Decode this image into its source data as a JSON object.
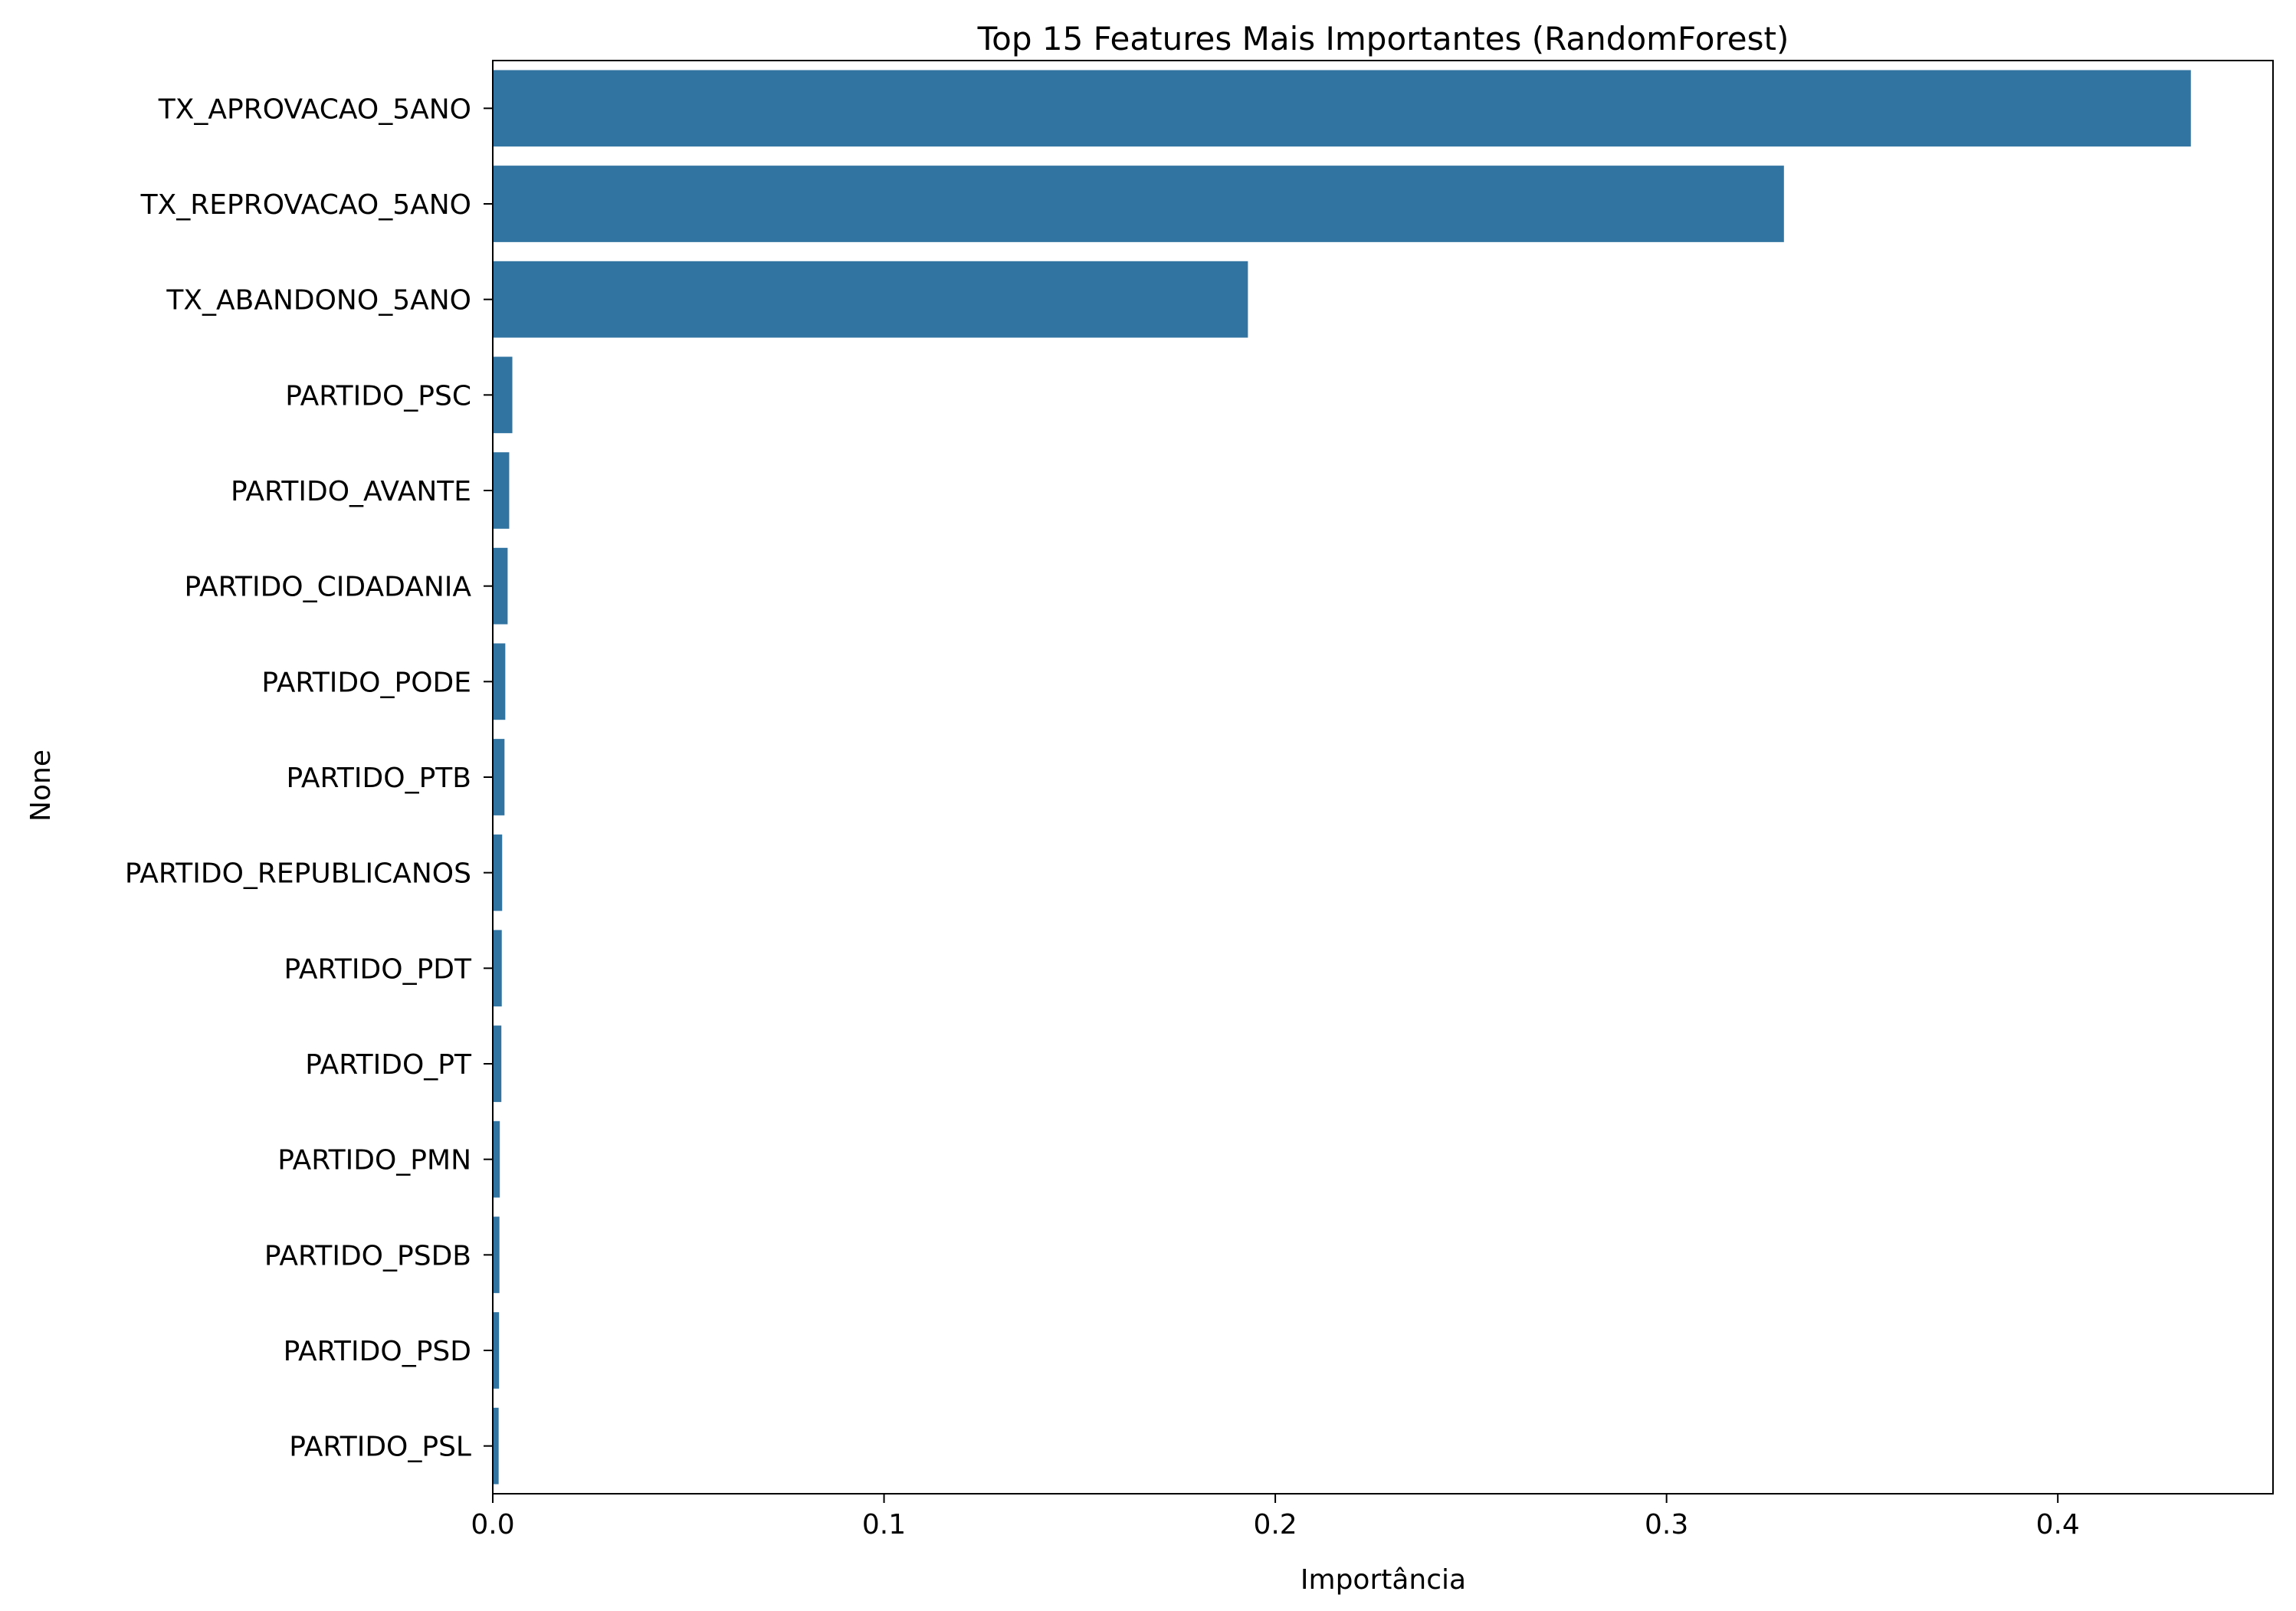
{
  "chart_data": {
    "type": "bar",
    "orientation": "horizontal",
    "title": "Top 15 Features Mais Importantes (RandomForest)",
    "xlabel": "Importância",
    "ylabel": "None",
    "xlim": [
      0,
      0.455
    ],
    "xticks": [
      0.0,
      0.1,
      0.2,
      0.3,
      0.4
    ],
    "xtick_labels": [
      "0.0",
      "0.1",
      "0.2",
      "0.3",
      "0.4"
    ],
    "grid": false,
    "bar_color": "#3274a1",
    "categories": [
      "TX_APROVACAO_5ANO",
      "TX_REPROVACAO_5ANO",
      "TX_ABANDONO_5ANO",
      "PARTIDO_PSC",
      "PARTIDO_AVANTE",
      "PARTIDO_CIDADANIA",
      "PARTIDO_PODE",
      "PARTIDO_PTB",
      "PARTIDO_REPUBLICANOS",
      "PARTIDO_PDT",
      "PARTIDO_PT",
      "PARTIDO_PMN",
      "PARTIDO_PSDB",
      "PARTIDO_PSD",
      "PARTIDO_PSL"
    ],
    "values": [
      0.434,
      0.33,
      0.193,
      0.005,
      0.0042,
      0.0038,
      0.0032,
      0.003,
      0.0024,
      0.0023,
      0.0022,
      0.0018,
      0.0017,
      0.0016,
      0.0015
    ]
  }
}
